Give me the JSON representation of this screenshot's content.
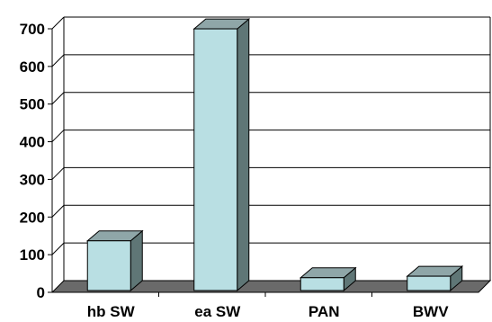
{
  "chart_data": {
    "type": "bar",
    "categories": [
      "hb SW",
      "ea SW",
      "PAN",
      "BWV"
    ],
    "values": [
      132,
      695,
      34,
      38
    ],
    "title": "",
    "xlabel": "",
    "ylabel": "",
    "ylim": [
      0,
      700
    ],
    "yticks": [
      0,
      100,
      200,
      300,
      400,
      500,
      600,
      700
    ],
    "grid": true,
    "legend": "none",
    "style": "3d",
    "colors": {
      "bar_front": "#b9dfe3",
      "bar_top": "#8fa6a8",
      "bar_side": "#5f7676",
      "floor": "#6a6a6a",
      "grid": "#000000"
    }
  }
}
